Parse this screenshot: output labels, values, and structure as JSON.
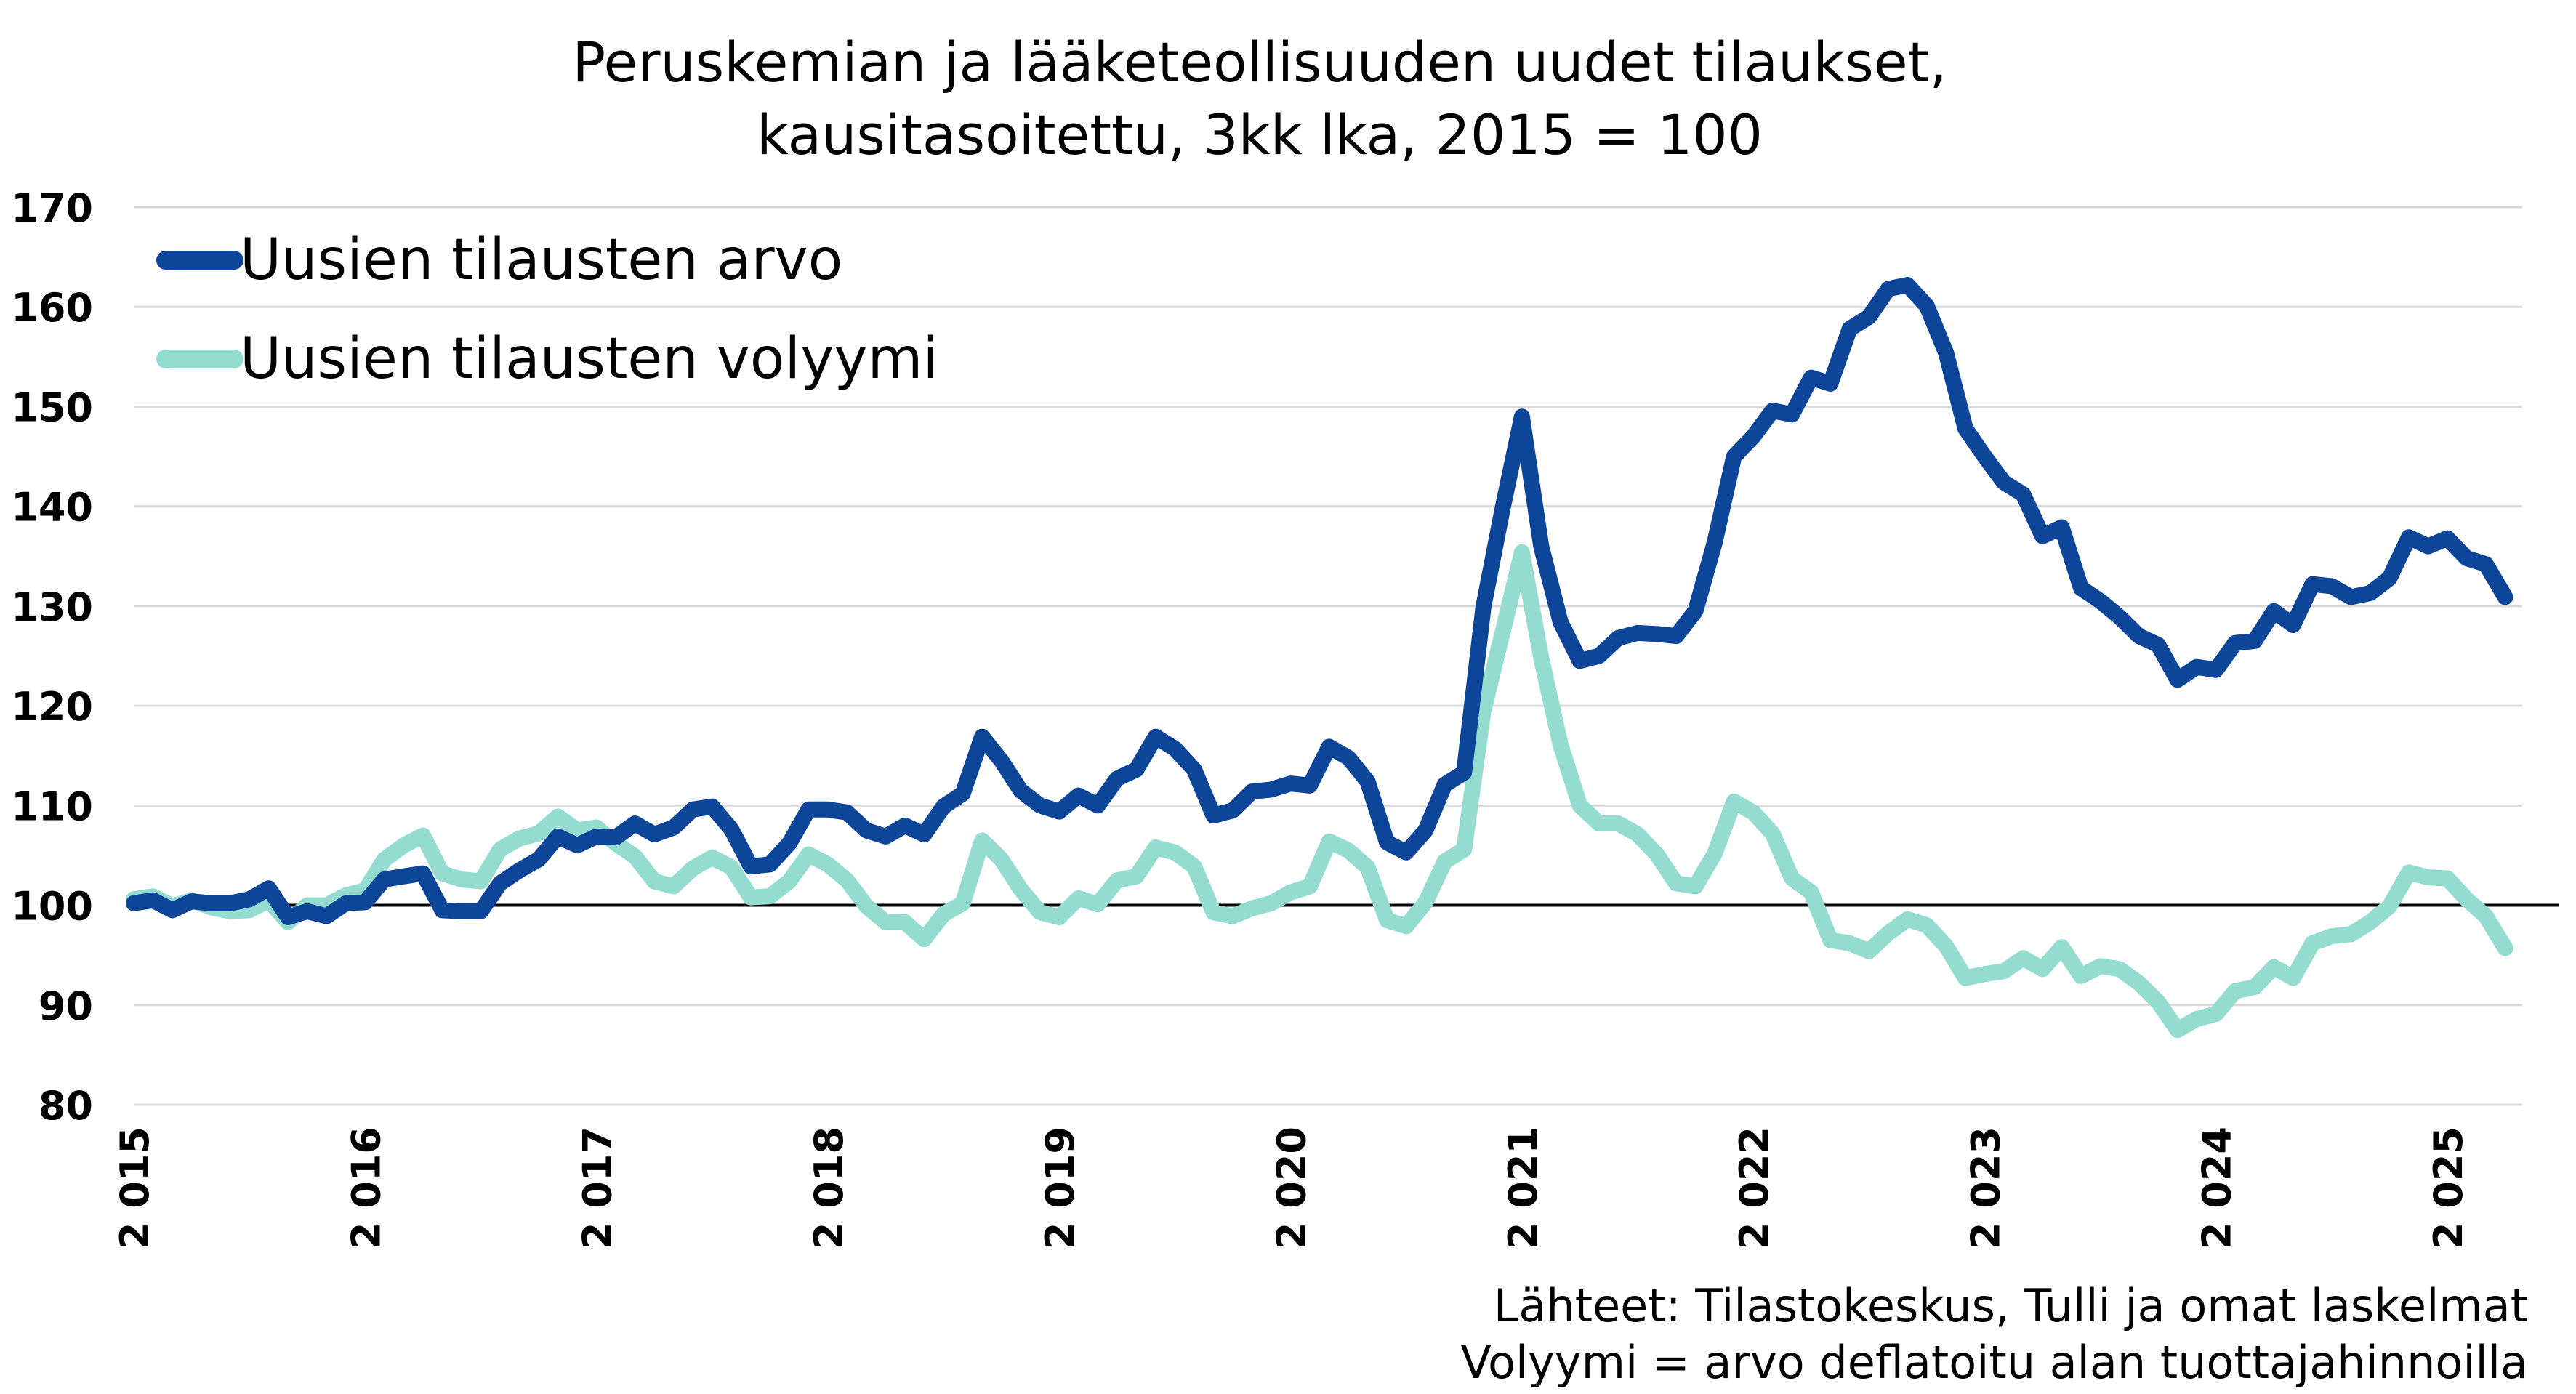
{
  "chart_data": {
    "type": "line",
    "title": "Peruskemian ja lääketeollisuuden uudet tilaukset,",
    "subtitle": "kausitasoitettu, 3kk lka, 2015 = 100",
    "ylim": [
      80,
      170
    ],
    "yticks": [
      80,
      90,
      100,
      110,
      120,
      130,
      140,
      150,
      160,
      170
    ],
    "xticks": [
      "2 015",
      "2 016",
      "2 017",
      "2 018",
      "2 019",
      "2 020",
      "2 021",
      "2 022",
      "2 023",
      "2 024",
      "2 025"
    ],
    "x_start_year": 2015,
    "grid": true,
    "reference_line": 100,
    "legend_position": "top-left",
    "colors": {
      "series_value": "#0d4599",
      "series_volume": "#93dccf",
      "grid": "#d9d9d9",
      "reference": "#000000"
    },
    "source_notes": [
      "Lähteet: Tilastokeskus, Tulli ja omat laskelmat",
      "Volyymi = arvo deflatoitu alan tuottajahinnoilla"
    ],
    "series": [
      {
        "name": "Uusien tilausten arvo",
        "values": [
          100.2,
          100.5,
          99.5,
          100.4,
          100.2,
          100.2,
          100.6,
          101.7,
          98.8,
          99.4,
          98.9,
          100.2,
          100.3,
          102.6,
          102.9,
          103.2,
          99.5,
          99.4,
          99.4,
          102.2,
          103.5,
          104.6,
          106.9,
          106.0,
          106.9,
          106.8,
          108.2,
          107.1,
          107.8,
          109.6,
          109.9,
          107.6,
          103.9,
          104.1,
          106.2,
          109.6,
          109.6,
          109.3,
          107.5,
          106.9,
          108.0,
          107.1,
          109.9,
          111.2,
          116.9,
          114.5,
          111.5,
          110.0,
          109.4,
          111.0,
          110.0,
          112.7,
          113.6,
          116.9,
          115.7,
          113.6,
          109.0,
          109.5,
          111.4,
          111.6,
          112.2,
          112.0,
          115.9,
          114.8,
          112.4,
          106.3,
          105.3,
          107.5,
          112.1,
          113.3,
          129.9,
          139.8,
          149.0,
          136.0,
          128.4,
          124.5,
          125.0,
          126.8,
          127.3,
          127.2,
          127.0,
          129.5,
          136.4,
          145.0,
          147.0,
          149.6,
          149.2,
          152.9,
          152.3,
          157.8,
          159.0,
          161.8,
          162.2,
          160.1,
          155.4,
          147.8,
          145.0,
          142.4,
          141.2,
          137.0,
          137.9,
          131.8,
          130.5,
          128.9,
          127.0,
          126.1,
          122.6,
          123.9,
          123.6,
          126.3,
          126.5,
          129.5,
          128.1,
          132.2,
          132.0,
          130.9,
          131.3,
          132.8,
          136.9,
          136.0,
          136.8,
          134.8,
          134.2,
          130.9
        ]
      },
      {
        "name": "Uusien tilausten volyymi",
        "values": [
          100.6,
          100.9,
          99.9,
          100.5,
          99.8,
          99.4,
          99.5,
          100.5,
          98.3,
          100.0,
          100.0,
          101.0,
          101.5,
          104.6,
          106.0,
          107.0,
          103.2,
          102.6,
          102.4,
          105.6,
          106.7,
          107.2,
          108.9,
          107.5,
          107.8,
          106.2,
          104.9,
          102.4,
          101.9,
          103.7,
          104.8,
          103.8,
          100.8,
          100.9,
          102.4,
          105.1,
          104.1,
          102.5,
          99.9,
          98.3,
          98.3,
          96.6,
          99.1,
          100.2,
          106.5,
          104.6,
          101.6,
          99.3,
          98.8,
          100.7,
          100.1,
          102.5,
          102.9,
          105.8,
          105.3,
          103.9,
          99.3,
          98.9,
          99.7,
          100.2,
          101.3,
          101.9,
          106.4,
          105.5,
          103.8,
          98.5,
          97.9,
          100.3,
          104.4,
          105.6,
          119.5,
          127.4,
          135.4,
          124.8,
          116.1,
          110.0,
          108.2,
          108.2,
          107.1,
          105.1,
          102.2,
          101.9,
          105.2,
          110.4,
          109.3,
          107.2,
          102.7,
          101.3,
          96.5,
          96.2,
          95.4,
          97.2,
          98.6,
          98.0,
          95.9,
          92.7,
          93.1,
          93.4,
          94.7,
          93.6,
          95.8,
          92.9,
          93.9,
          93.6,
          92.2,
          90.3,
          87.5,
          88.6,
          89.1,
          91.4,
          91.8,
          93.8,
          92.7,
          96.2,
          96.9,
          97.1,
          98.3,
          99.9,
          103.3,
          102.8,
          102.7,
          100.6,
          98.9,
          95.7
        ]
      }
    ]
  }
}
